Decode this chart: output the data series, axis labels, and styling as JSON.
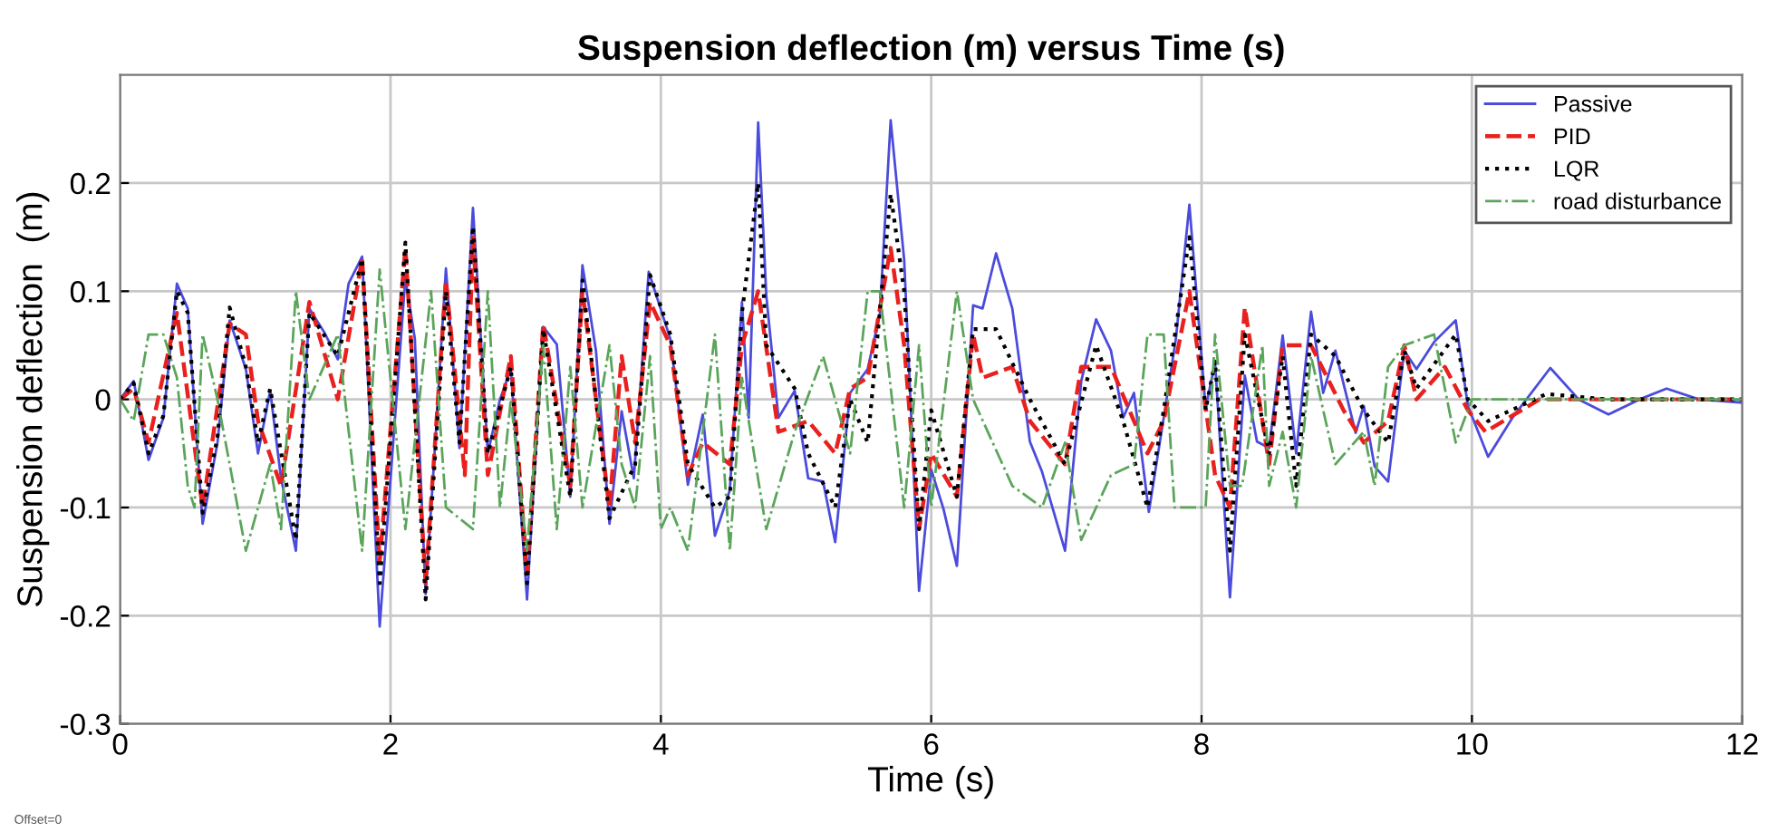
{
  "chart_data": {
    "type": "line",
    "title": "Suspension deflection (m) versus Time (s)",
    "xlabel": "Time (s)",
    "ylabel": "Suspension deflection  (m)",
    "xlim": [
      0,
      12
    ],
    "ylim": [
      -0.3,
      0.3
    ],
    "xticks": [
      0,
      2,
      4,
      6,
      8,
      10,
      12
    ],
    "yticks": [
      -0.3,
      -0.2,
      -0.1,
      0,
      0.1,
      0.2
    ],
    "grid": true,
    "legend": "top right",
    "annotations": [
      "Offset=0"
    ],
    "series": [
      {
        "name": "Passive",
        "color": "#4b4bdc",
        "line_style": "solid",
        "x": [
          0,
          0.1,
          0.21,
          0.32,
          0.42,
          0.5,
          0.61,
          0.72,
          0.81,
          0.93,
          1.02,
          1.11,
          1.19,
          1.3,
          1.4,
          1.51,
          1.61,
          1.69,
          1.79,
          1.92,
          2.02,
          2.11,
          2.18,
          2.26,
          2.34,
          2.41,
          2.51,
          2.61,
          2.72,
          2.81,
          2.89,
          3.01,
          3.13,
          3.23,
          3.33,
          3.42,
          3.52,
          3.62,
          3.71,
          3.8,
          3.91,
          4.07,
          4.2,
          4.31,
          4.4,
          4.51,
          4.6,
          4.65,
          4.72,
          4.78,
          4.87,
          4.99,
          5.09,
          5.2,
          5.29,
          5.4,
          5.53,
          5.62,
          5.7,
          5.8,
          5.91,
          6.0,
          6.09,
          6.19,
          6.31,
          6.38,
          6.48,
          6.6,
          6.73,
          6.82,
          6.99,
          7.11,
          7.22,
          7.33,
          7.42,
          7.5,
          7.61,
          7.72,
          7.81,
          7.91,
          8.03,
          8.1,
          8.21,
          8.32,
          8.41,
          8.5,
          8.6,
          8.7,
          8.81,
          8.9,
          8.99,
          9.14,
          9.2,
          9.28,
          9.38,
          9.5,
          9.59,
          9.72,
          9.88,
          9.97,
          10.12,
          10.3,
          10.58,
          10.79,
          11.01,
          11.24,
          11.44,
          11.68,
          12.0
        ],
        "values": [
          0,
          0.017,
          -0.056,
          -0.017,
          0.107,
          0.084,
          -0.115,
          -0.04,
          0.073,
          0.028,
          -0.05,
          0.008,
          -0.073,
          -0.14,
          0.084,
          0.062,
          0.037,
          0.107,
          0.132,
          -0.21,
          -0.04,
          0.112,
          0.056,
          -0.18,
          -0.022,
          0.121,
          -0.045,
          0.177,
          -0.05,
          0,
          0.028,
          -0.185,
          0.067,
          0.051,
          -0.09,
          0.124,
          0.045,
          -0.115,
          -0.011,
          -0.073,
          0.118,
          0.056,
          -0.079,
          -0.014,
          -0.126,
          -0.084,
          0.09,
          -0.017,
          0.256,
          0.096,
          -0.017,
          0.008,
          -0.073,
          -0.076,
          -0.132,
          0.006,
          0.028,
          0.079,
          0.258,
          0.129,
          -0.177,
          -0.065,
          -0.101,
          -0.154,
          0.087,
          0.084,
          0.135,
          0.084,
          -0.039,
          -0.067,
          -0.14,
          0.017,
          0.074,
          0.045,
          -0.017,
          0.006,
          -0.104,
          -0.017,
          0.056,
          0.18,
          -0.008,
          0.034,
          -0.183,
          0.022,
          -0.039,
          -0.045,
          0.059,
          -0.05,
          0.081,
          0.006,
          0.045,
          -0.031,
          -0.006,
          -0.062,
          -0.076,
          0.045,
          0.028,
          0.053,
          0.073,
          -0.006,
          -0.053,
          -0.017,
          0.029,
          0,
          -0.014,
          0,
          0.01,
          0,
          -0.003
        ]
      },
      {
        "name": "PID",
        "color": "#e8211f",
        "line_style": "dashed",
        "x": [
          0,
          0.1,
          0.21,
          0.42,
          0.61,
          0.81,
          0.93,
          1.02,
          1.19,
          1.4,
          1.61,
          1.79,
          1.92,
          2.11,
          2.26,
          2.41,
          2.55,
          2.61,
          2.72,
          2.89,
          3.01,
          3.13,
          3.33,
          3.42,
          3.62,
          3.71,
          3.81,
          3.92,
          4.07,
          4.2,
          4.31,
          4.51,
          4.6,
          4.72,
          4.87,
          5.09,
          5.29,
          5.4,
          5.53,
          5.7,
          5.8,
          5.91,
          6.0,
          6.19,
          6.31,
          6.38,
          6.6,
          6.73,
          6.99,
          7.11,
          7.33,
          7.5,
          7.6,
          7.72,
          7.91,
          8.1,
          8.21,
          8.32,
          8.5,
          8.6,
          8.81,
          9.05,
          9.2,
          9.38,
          9.5,
          9.59,
          9.8,
          9.97,
          10.1,
          10.5,
          12.0
        ],
        "values": [
          0,
          0.01,
          -0.04,
          0.08,
          -0.1,
          0.07,
          0.06,
          -0.02,
          -0.08,
          0.09,
          0,
          0.13,
          -0.15,
          0.14,
          -0.17,
          0.11,
          -0.07,
          0.15,
          -0.07,
          0.04,
          -0.16,
          0.07,
          -0.08,
          0.1,
          -0.1,
          0.04,
          -0.04,
          0.09,
          0.05,
          -0.07,
          -0.04,
          -0.06,
          0.05,
          0.1,
          -0.03,
          -0.02,
          -0.05,
          0.01,
          0.02,
          0.14,
          0.05,
          -0.12,
          -0.05,
          -0.09,
          0.06,
          0.02,
          0.03,
          -0.02,
          -0.06,
          0.03,
          0.03,
          -0.02,
          -0.05,
          -0.02,
          0.1,
          -0.07,
          -0.1,
          0.085,
          -0.06,
          0.05,
          0.05,
          -0.01,
          -0.04,
          -0.02,
          0.05,
          0,
          0.03,
          -0.01,
          -0.03,
          0,
          0
        ]
      },
      {
        "name": "LQR",
        "color": "#000000",
        "line_style": "dotted",
        "x": [
          0,
          0.1,
          0.21,
          0.32,
          0.42,
          0.5,
          0.61,
          0.72,
          0.81,
          0.93,
          1.02,
          1.11,
          1.3,
          1.4,
          1.61,
          1.79,
          1.92,
          2.11,
          2.26,
          2.41,
          2.51,
          2.61,
          2.72,
          2.89,
          3.01,
          3.13,
          3.33,
          3.42,
          3.62,
          3.81,
          3.92,
          4.07,
          4.2,
          4.4,
          4.51,
          4.6,
          4.72,
          4.78,
          4.99,
          5.09,
          5.29,
          5.4,
          5.53,
          5.7,
          5.8,
          5.91,
          6.0,
          6.19,
          6.31,
          6.48,
          6.73,
          6.99,
          7.22,
          7.42,
          7.6,
          7.72,
          7.91,
          8.03,
          8.1,
          8.21,
          8.32,
          8.5,
          8.6,
          8.7,
          8.81,
          8.99,
          9.2,
          9.38,
          9.5,
          9.59,
          9.88,
          9.97,
          10.12,
          10.55,
          11.0,
          12.0
        ],
        "values": [
          0,
          0.015,
          -0.05,
          -0.015,
          0.1,
          0.08,
          -0.105,
          -0.035,
          0.085,
          0.03,
          -0.04,
          0.01,
          -0.13,
          0.08,
          0.04,
          0.13,
          -0.17,
          0.145,
          -0.185,
          0.1,
          -0.04,
          0.16,
          -0.05,
          0.03,
          -0.17,
          0.065,
          -0.09,
          0.11,
          -0.11,
          -0.06,
          0.115,
          0.06,
          -0.06,
          -0.1,
          -0.09,
          0.08,
          0.2,
          0.05,
          0.01,
          -0.05,
          -0.1,
          0,
          -0.04,
          0.19,
          0.1,
          -0.12,
          -0.01,
          -0.09,
          0.065,
          0.065,
          0,
          -0.06,
          0.05,
          -0.02,
          -0.1,
          -0.01,
          0.15,
          -0.01,
          0.035,
          -0.14,
          0.06,
          -0.05,
          0.04,
          -0.08,
          0.06,
          0.04,
          -0.01,
          -0.04,
          0.045,
          0.01,
          0.06,
          0,
          -0.02,
          0.005,
          0,
          0
        ]
      },
      {
        "name": "road disturbance",
        "color": "#5aa55a",
        "line_style": "dashdot",
        "x": [
          0,
          0.1,
          0.21,
          0.32,
          0.42,
          0.5,
          0.55,
          0.61,
          0.72,
          0.93,
          1.11,
          1.19,
          1.3,
          1.4,
          1.61,
          1.79,
          1.92,
          2.11,
          2.3,
          2.41,
          2.61,
          2.72,
          2.81,
          2.89,
          3.01,
          3.13,
          3.23,
          3.33,
          3.42,
          3.62,
          3.71,
          3.81,
          3.92,
          4.0,
          4.07,
          4.2,
          4.4,
          4.51,
          4.6,
          4.65,
          4.78,
          4.99,
          5.2,
          5.4,
          5.53,
          5.62,
          5.8,
          5.91,
          6.0,
          6.19,
          6.31,
          6.6,
          6.82,
          6.99,
          7.11,
          7.33,
          7.5,
          7.6,
          7.72,
          7.8,
          8.03,
          8.1,
          8.21,
          8.3,
          8.45,
          8.5,
          8.6,
          8.7,
          8.81,
          8.99,
          9.2,
          9.28,
          9.38,
          9.5,
          9.72,
          9.88,
          10.0,
          12.0
        ],
        "values": [
          0,
          -0.02,
          0.06,
          0.06,
          0.02,
          -0.08,
          -0.1,
          0.06,
          0,
          -0.14,
          -0.06,
          -0.12,
          0.1,
          0,
          0.06,
          -0.14,
          0.12,
          -0.12,
          0.1,
          -0.1,
          -0.12,
          0.1,
          -0.1,
          0,
          -0.14,
          0.05,
          -0.12,
          0.03,
          -0.1,
          0.05,
          -0.06,
          -0.1,
          0.04,
          -0.12,
          -0.1,
          -0.14,
          0.06,
          -0.14,
          0.02,
          -0.02,
          -0.12,
          -0.03,
          0.04,
          -0.05,
          0.1,
          0.1,
          -0.1,
          0.05,
          -0.1,
          0.1,
          0,
          -0.08,
          -0.1,
          -0.04,
          -0.13,
          -0.07,
          -0.06,
          0.06,
          0.06,
          -0.1,
          -0.1,
          0.06,
          -0.08,
          -0.08,
          0.05,
          -0.08,
          -0.03,
          -0.1,
          0.04,
          -0.06,
          -0.03,
          -0.08,
          0.03,
          0.05,
          0.06,
          -0.04,
          0,
          0
        ]
      }
    ]
  }
}
